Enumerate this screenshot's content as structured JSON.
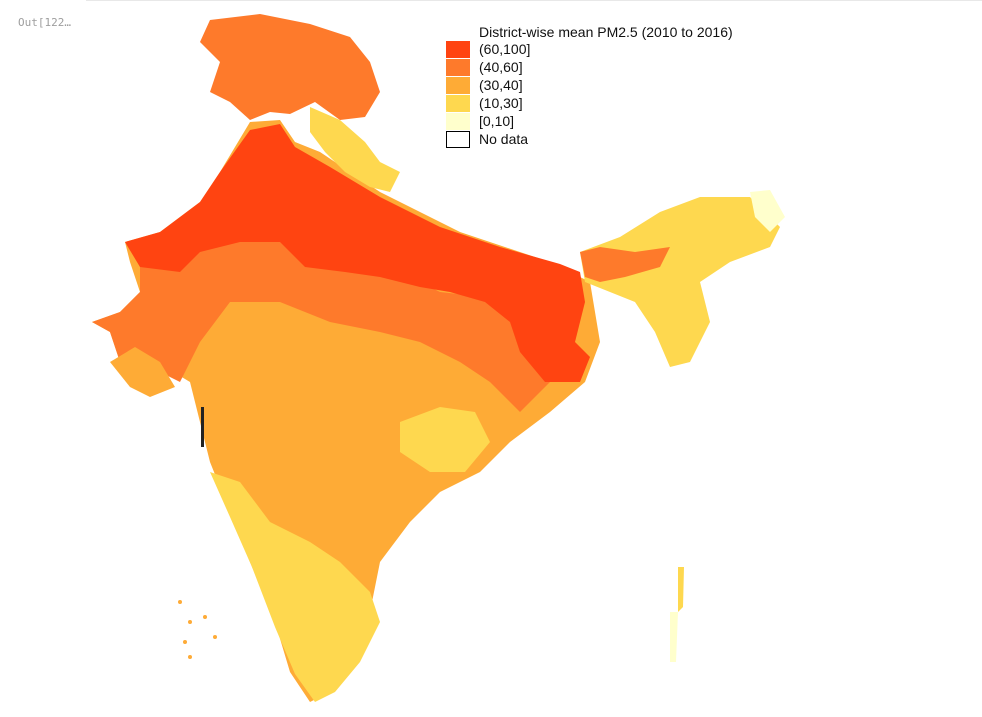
{
  "notebook": {
    "output_prompt": "Out[122…"
  },
  "map": {
    "legend_title": "District-wise mean PM2.5 (2010 to 2016)",
    "legend": [
      {
        "label": "(60,100]",
        "color": "#ff4411"
      },
      {
        "label": "(40,60]",
        "color": "#fe7a2b"
      },
      {
        "label": "(30,40]",
        "color": "#feab36"
      },
      {
        "label": "(10,30]",
        "color": "#fed84f"
      },
      {
        "label": "[0,10]",
        "color": "#ffffcc"
      },
      {
        "label": "No data",
        "color": "#ffffff"
      }
    ],
    "no_data_border": "#000000"
  }
}
